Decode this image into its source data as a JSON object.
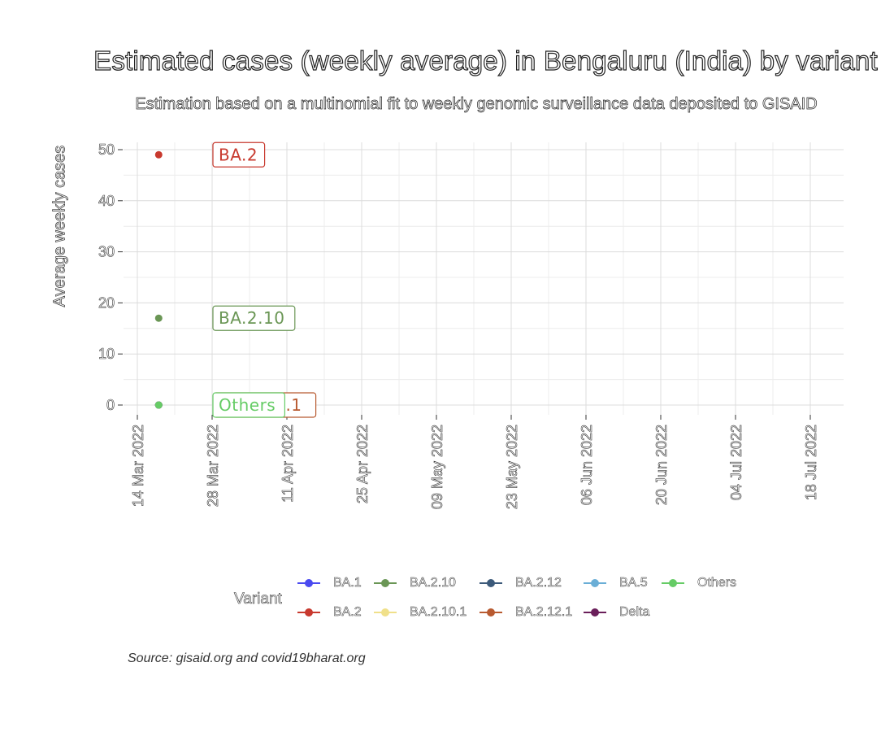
{
  "chart_data": {
    "type": "line",
    "title": "Estimated cases (weekly average) in Bengaluru (India) by variant",
    "subtitle": "Estimation based on a multinomial fit to weekly genomic surveillance data deposited to GISAID",
    "ylabel": "Average weekly cases",
    "xlabel": "",
    "ylim": [
      0,
      50
    ],
    "y_ticks": [
      0,
      10,
      20,
      30,
      40,
      50
    ],
    "x_ticks": [
      "14 Mar 2022",
      "28 Mar 2022",
      "11 Apr 2022",
      "25 Apr 2022",
      "09 May 2022",
      "23 May 2022",
      "06 Jun 2022",
      "20 Jun 2022",
      "04 Jul 2022",
      "18 Jul 2022"
    ],
    "x_tick_dates": [
      "2022-03-14",
      "2022-03-28",
      "2022-04-11",
      "2022-04-25",
      "2022-05-09",
      "2022-05-23",
      "2022-06-06",
      "2022-06-20",
      "2022-07-04",
      "2022-07-18"
    ],
    "grid": true,
    "legend_position": "bottom",
    "legend_title": "Variant",
    "series": [
      {
        "name": "BA.1",
        "color": "#4a4af0",
        "points": [
          {
            "x": "2022-03-18",
            "y": 0
          }
        ]
      },
      {
        "name": "BA.2",
        "color": "#c8392e",
        "points": [
          {
            "x": "2022-03-18",
            "y": 49
          }
        ],
        "label": "BA.2"
      },
      {
        "name": "BA.2.10",
        "color": "#6a9655",
        "points": [
          {
            "x": "2022-03-18",
            "y": 17
          }
        ],
        "label": "BA.2.10"
      },
      {
        "name": "BA.2.10.1",
        "color": "#f0e08a",
        "points": [
          {
            "x": "2022-03-18",
            "y": 0
          }
        ]
      },
      {
        "name": "BA.2.12",
        "color": "#3c5a7a",
        "points": [
          {
            "x": "2022-03-18",
            "y": 0
          }
        ]
      },
      {
        "name": "BA.2.12.1",
        "color": "#b85a30",
        "points": [
          {
            "x": "2022-03-18",
            "y": 0
          }
        ],
        "label": "BA.2.12.1"
      },
      {
        "name": "BA.5",
        "color": "#6aaed6",
        "points": [
          {
            "x": "2022-03-18",
            "y": 0
          }
        ]
      },
      {
        "name": "Delta",
        "color": "#6a1f5a",
        "points": [
          {
            "x": "2022-03-18",
            "y": 0
          }
        ]
      },
      {
        "name": "Others",
        "color": "#66cc66",
        "points": [
          {
            "x": "2022-03-18",
            "y": 0
          }
        ],
        "label": "Others"
      }
    ],
    "legend_order": [
      "BA.1",
      "BA.2.10",
      "BA.2.12",
      "BA.5",
      "Others",
      "BA.2",
      "BA.2.10.1",
      "BA.2.12.1",
      "Delta"
    ],
    "source": "Source: gisaid.org and covid19bharat.org"
  }
}
